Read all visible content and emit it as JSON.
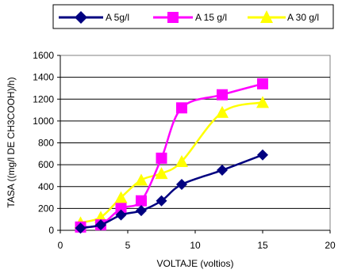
{
  "chart_data": {
    "type": "line",
    "title": "",
    "xlabel": "VOLTAJE (voltios)",
    "ylabel": "TASA ((mg/l DE CH3COOH)/h)",
    "xlim": [
      0,
      20
    ],
    "ylim": [
      0,
      1600
    ],
    "xticks": [
      0,
      5,
      10,
      15,
      20
    ],
    "yticks": [
      0,
      200,
      400,
      600,
      800,
      1000,
      1200,
      1400,
      1600
    ],
    "grid": "horizontal",
    "legend_position": "top",
    "series": [
      {
        "name": "A  5g/l",
        "color": "#000080",
        "marker": "diamond",
        "x": [
          1.5,
          3,
          4.5,
          6,
          7.5,
          9,
          12,
          15
        ],
        "y": [
          20,
          50,
          140,
          180,
          270,
          420,
          550,
          690
        ]
      },
      {
        "name": "A  15 g/l",
        "color": "#FF00FF",
        "marker": "square",
        "x": [
          1.5,
          3,
          4.5,
          6,
          7.5,
          9,
          12,
          15
        ],
        "y": [
          30,
          50,
          200,
          270,
          660,
          1120,
          1240,
          1340
        ]
      },
      {
        "name": "A  30 g/l",
        "color": "#FFFF00",
        "marker": "triangle",
        "x": [
          1.5,
          3,
          4.5,
          6,
          7.5,
          9,
          12,
          15
        ],
        "y": [
          70,
          120,
          300,
          460,
          520,
          630,
          1080,
          1170
        ]
      }
    ]
  }
}
